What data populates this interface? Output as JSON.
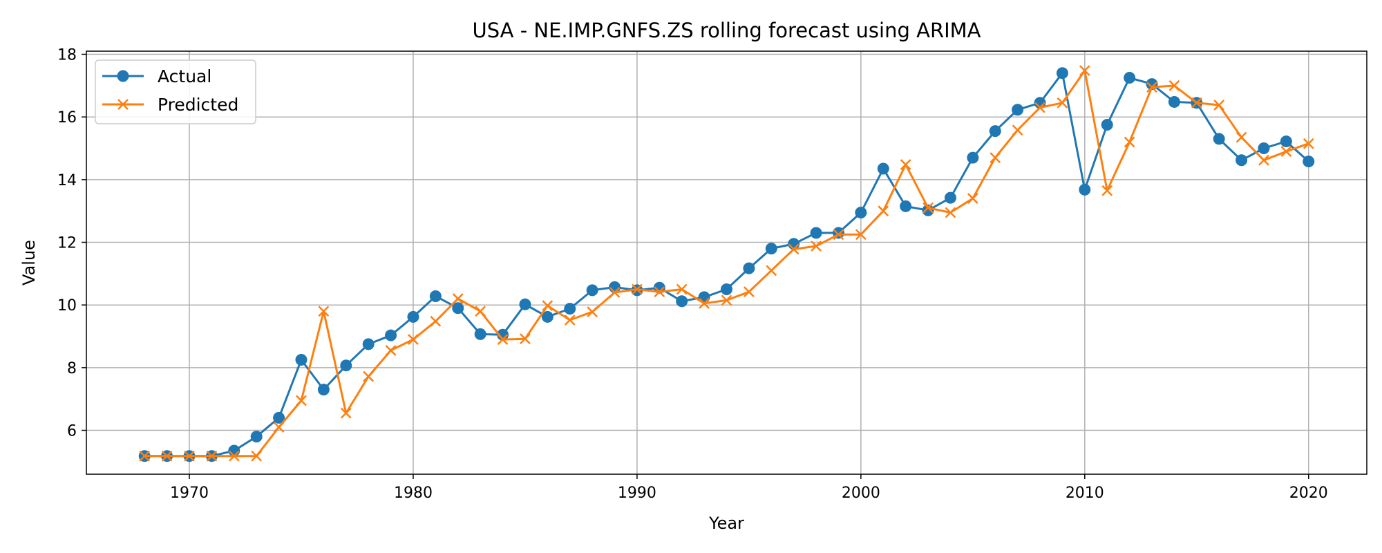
{
  "chart_data": {
    "type": "line",
    "title": "USA - NE.IMP.GNFS.ZS rolling forecast using ARIMA",
    "xlabel": "Year",
    "ylabel": "Value",
    "xlim": [
      1965.4,
      2022.6
    ],
    "ylim": [
      4.6,
      18.1
    ],
    "x_ticks": [
      1970,
      1980,
      1990,
      2000,
      2010,
      2020
    ],
    "y_ticks": [
      6,
      8,
      10,
      12,
      14,
      16,
      18
    ],
    "grid": true,
    "legend_position": "upper-left",
    "x": [
      1968,
      1969,
      1970,
      1971,
      1972,
      1973,
      1974,
      1975,
      1976,
      1977,
      1978,
      1979,
      1980,
      1981,
      1982,
      1983,
      1984,
      1985,
      1986,
      1987,
      1988,
      1989,
      1990,
      1991,
      1992,
      1993,
      1994,
      1995,
      1996,
      1997,
      1998,
      1999,
      2000,
      2001,
      2002,
      2003,
      2004,
      2005,
      2006,
      2007,
      2008,
      2009,
      2010,
      2011,
      2012,
      2013,
      2014,
      2015,
      2016,
      2017,
      2018,
      2019,
      2020
    ],
    "series": [
      {
        "name": "Actual",
        "color": "#1f77b4",
        "marker": "circle",
        "values": [
          5.18,
          5.18,
          5.18,
          5.18,
          5.35,
          5.8,
          6.4,
          8.25,
          7.3,
          8.07,
          8.75,
          9.03,
          9.62,
          10.28,
          9.9,
          9.07,
          9.05,
          10.02,
          9.62,
          9.88,
          10.47,
          10.57,
          10.47,
          10.55,
          10.12,
          10.25,
          10.5,
          11.17,
          11.8,
          11.95,
          12.3,
          12.3,
          12.95,
          14.35,
          13.15,
          13.02,
          13.42,
          14.7,
          15.55,
          16.23,
          16.45,
          17.4,
          13.68,
          15.75,
          17.25,
          17.05,
          16.48,
          16.45,
          15.3,
          14.62,
          15.0,
          15.22,
          14.58
        ]
      },
      {
        "name": "Predicted",
        "color": "#ff7f0e",
        "marker": "x",
        "values": [
          5.18,
          5.18,
          5.18,
          5.18,
          5.18,
          5.18,
          6.1,
          6.95,
          9.8,
          6.55,
          7.72,
          8.55,
          8.9,
          9.48,
          10.2,
          9.8,
          8.9,
          8.92,
          9.98,
          9.52,
          9.78,
          10.4,
          10.5,
          10.42,
          10.5,
          10.05,
          10.15,
          10.42,
          11.1,
          11.78,
          11.88,
          12.25,
          12.25,
          13.0,
          14.48,
          13.1,
          12.95,
          13.4,
          14.7,
          15.58,
          16.3,
          16.45,
          17.48,
          13.65,
          15.2,
          16.95,
          17.0,
          16.45,
          16.38,
          15.35,
          14.62,
          14.9,
          15.15
        ]
      }
    ]
  }
}
